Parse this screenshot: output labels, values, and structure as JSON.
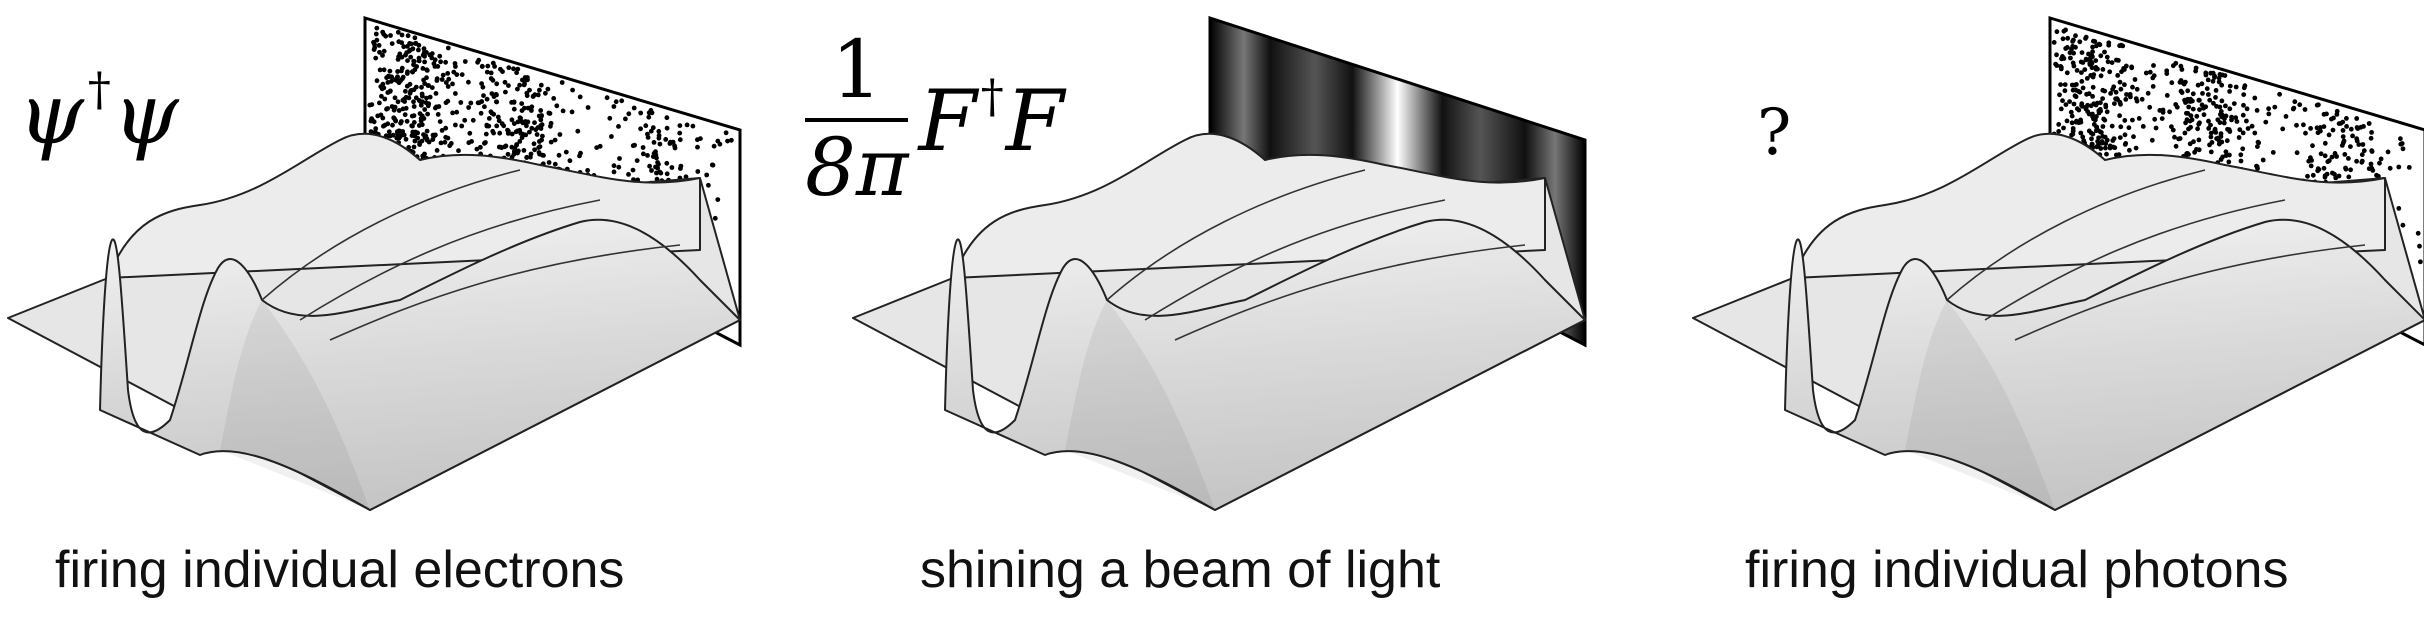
{
  "panels": [
    {
      "formula": {
        "base": "ψ",
        "dagger": "†",
        "tail": "ψ"
      },
      "screen": "dots",
      "caption": "firing individual electrons"
    },
    {
      "formula": {
        "num": "1",
        "den": "8π",
        "base": "F",
        "dagger": "†",
        "tail": "F"
      },
      "screen": "gradient",
      "caption": "shining a beam of light"
    },
    {
      "formula": {
        "text": "?"
      },
      "screen": "dots",
      "caption": "firing individual photons"
    }
  ]
}
